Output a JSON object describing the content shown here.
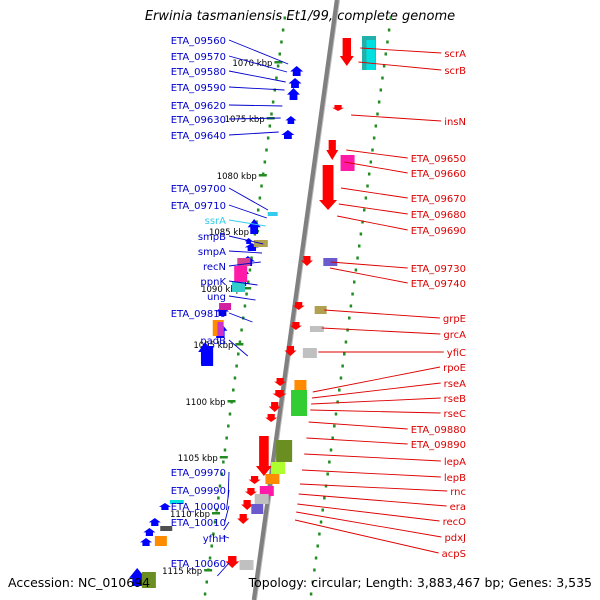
{
  "title": "Erwinia tasmaniensis Et1/99, complete genome",
  "accession": "Accession: NC_010694",
  "topology": "Topology: circular; Length: 3,883,467 bp; Genes: 3,535",
  "colors": {
    "left_label": "#0000cc",
    "right_label": "#dd0000",
    "rna_label": "#33ccee",
    "backbone": "#808080",
    "ruler_tick": "#228b22",
    "forward_feature": "#0000ff",
    "reverse_feature": "#ff0000"
  },
  "scale_labels": [
    "1070 kbp",
    "1075 kbp",
    "1080 kbp",
    "1085 kbp",
    "1090 kbp",
    "1095 kbp",
    "1100 kbp",
    "1105 kbp",
    "1110 kbp",
    "1115 kbp"
  ],
  "left_genes": [
    {
      "label": "ETA_09560",
      "kind": "gene"
    },
    {
      "label": "ETA_09570",
      "kind": "gene"
    },
    {
      "label": "ETA_09580",
      "kind": "gene"
    },
    {
      "label": "ETA_09590",
      "kind": "gene"
    },
    {
      "label": "ETA_09620",
      "kind": "gene"
    },
    {
      "label": "ETA_09630",
      "kind": "gene"
    },
    {
      "label": "ETA_09640",
      "kind": "gene"
    },
    {
      "label": "ETA_09700",
      "kind": "gene"
    },
    {
      "label": "ETA_09710",
      "kind": "gene"
    },
    {
      "label": "ssrA",
      "kind": "rna"
    },
    {
      "label": "smpB",
      "kind": "gene"
    },
    {
      "label": "smpA",
      "kind": "gene"
    },
    {
      "label": "recN",
      "kind": "gene"
    },
    {
      "label": "ppnK",
      "kind": "gene"
    },
    {
      "label": "ung",
      "kind": "gene"
    },
    {
      "label": "ETA_09810",
      "kind": "gene"
    },
    {
      "label": "nadB",
      "kind": "gene"
    },
    {
      "label": "ETA_09970",
      "kind": "gene"
    },
    {
      "label": "ETA_09990",
      "kind": "gene"
    },
    {
      "label": "ETA_10000",
      "kind": "gene"
    },
    {
      "label": "ETA_10010",
      "kind": "gene"
    },
    {
      "label": "yfhH",
      "kind": "gene"
    },
    {
      "label": "ETA_10060",
      "kind": "gene"
    }
  ],
  "right_genes": [
    {
      "label": "scrA"
    },
    {
      "label": "scrB"
    },
    {
      "label": "insN"
    },
    {
      "label": "ETA_09650"
    },
    {
      "label": "ETA_09660"
    },
    {
      "label": "ETA_09670"
    },
    {
      "label": "ETA_09680"
    },
    {
      "label": "ETA_09690"
    },
    {
      "label": "ETA_09730"
    },
    {
      "label": "ETA_09740"
    },
    {
      "label": "grpE"
    },
    {
      "label": "grcA"
    },
    {
      "label": "yfiC"
    },
    {
      "label": "rpoE"
    },
    {
      "label": "rseA"
    },
    {
      "label": "rseB"
    },
    {
      "label": "rseC"
    },
    {
      "label": "ETA_09880"
    },
    {
      "label": "ETA_09890"
    },
    {
      "label": "lepA"
    },
    {
      "label": "lepB"
    },
    {
      "label": "rnc"
    },
    {
      "label": "era"
    },
    {
      "label": "recO"
    },
    {
      "label": "pdxJ"
    },
    {
      "label": "acpS"
    }
  ]
}
